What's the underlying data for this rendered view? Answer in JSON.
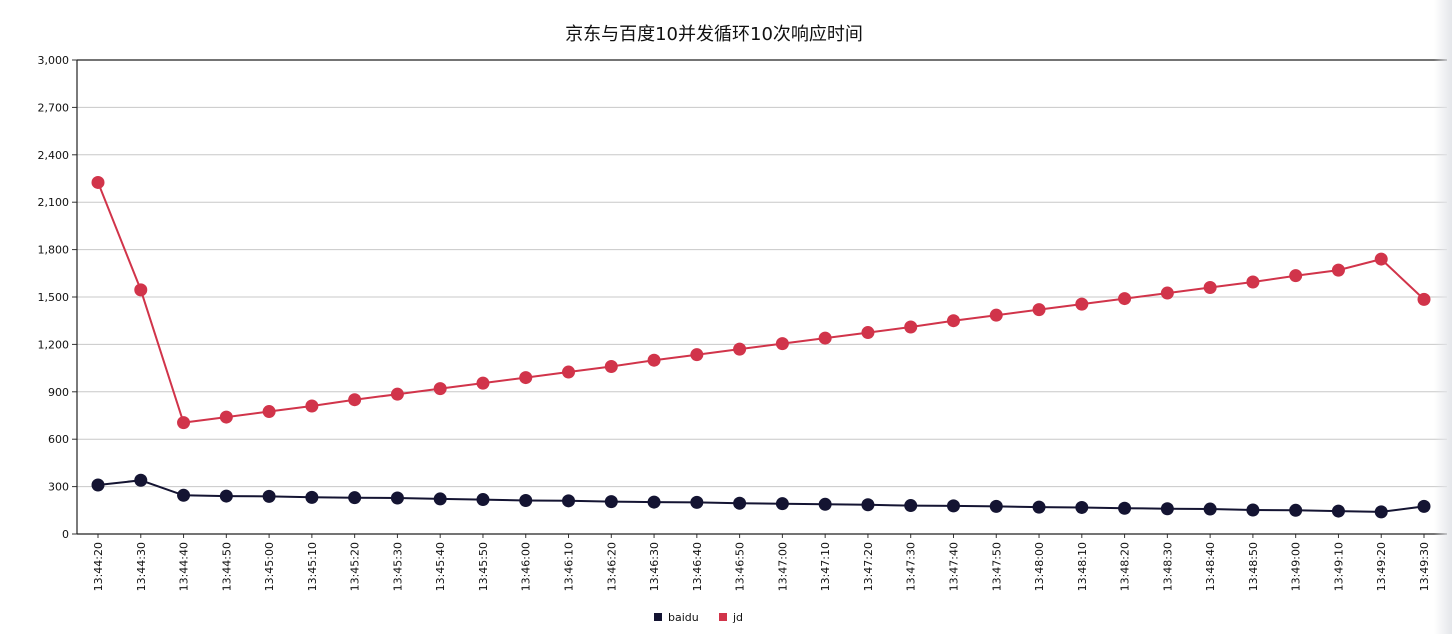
{
  "chart_data": {
    "type": "line",
    "title": "京东与百度10并发循环10次响应时间",
    "xlabel": "",
    "ylabel": "",
    "ylim": [
      0,
      3000
    ],
    "y_ticks": [
      "0",
      "300",
      "600",
      "900",
      "1,200",
      "1,500",
      "1,800",
      "2,100",
      "2,400",
      "2,700",
      "3,000"
    ],
    "y_tick_values": [
      0,
      300,
      600,
      900,
      1200,
      1500,
      1800,
      2100,
      2400,
      2700,
      3000
    ],
    "grid": true,
    "legend_position": "bottom",
    "categories": [
      "13:44:20",
      "13:44:30",
      "13:44:40",
      "13:44:50",
      "13:45:00",
      "13:45:10",
      "13:45:20",
      "13:45:30",
      "13:45:40",
      "13:45:50",
      "13:46:00",
      "13:46:10",
      "13:46:20",
      "13:46:30",
      "13:46:40",
      "13:46:50",
      "13:47:00",
      "13:47:10",
      "13:47:20",
      "13:47:30",
      "13:47:40",
      "13:47:50",
      "13:48:00",
      "13:48:10",
      "13:48:20",
      "13:48:30",
      "13:48:40",
      "13:48:50",
      "13:49:00",
      "13:49:10",
      "13:49:20",
      "13:49:30"
    ],
    "series": [
      {
        "name": "baidu",
        "color": "#141432",
        "values": [
          310,
          340,
          245,
          240,
          238,
          232,
          230,
          228,
          222,
          218,
          212,
          210,
          205,
          202,
          200,
          195,
          192,
          188,
          185,
          180,
          178,
          175,
          170,
          168,
          163,
          160,
          158,
          152,
          150,
          145,
          140,
          175
        ]
      },
      {
        "name": "jd",
        "color": "#d1344a",
        "values": [
          2225,
          1545,
          705,
          740,
          775,
          810,
          850,
          885,
          920,
          955,
          990,
          1025,
          1060,
          1100,
          1135,
          1170,
          1205,
          1240,
          1275,
          1310,
          1350,
          1385,
          1420,
          1455,
          1490,
          1525,
          1560,
          1595,
          1635,
          1670,
          1740,
          1485
        ]
      }
    ]
  }
}
